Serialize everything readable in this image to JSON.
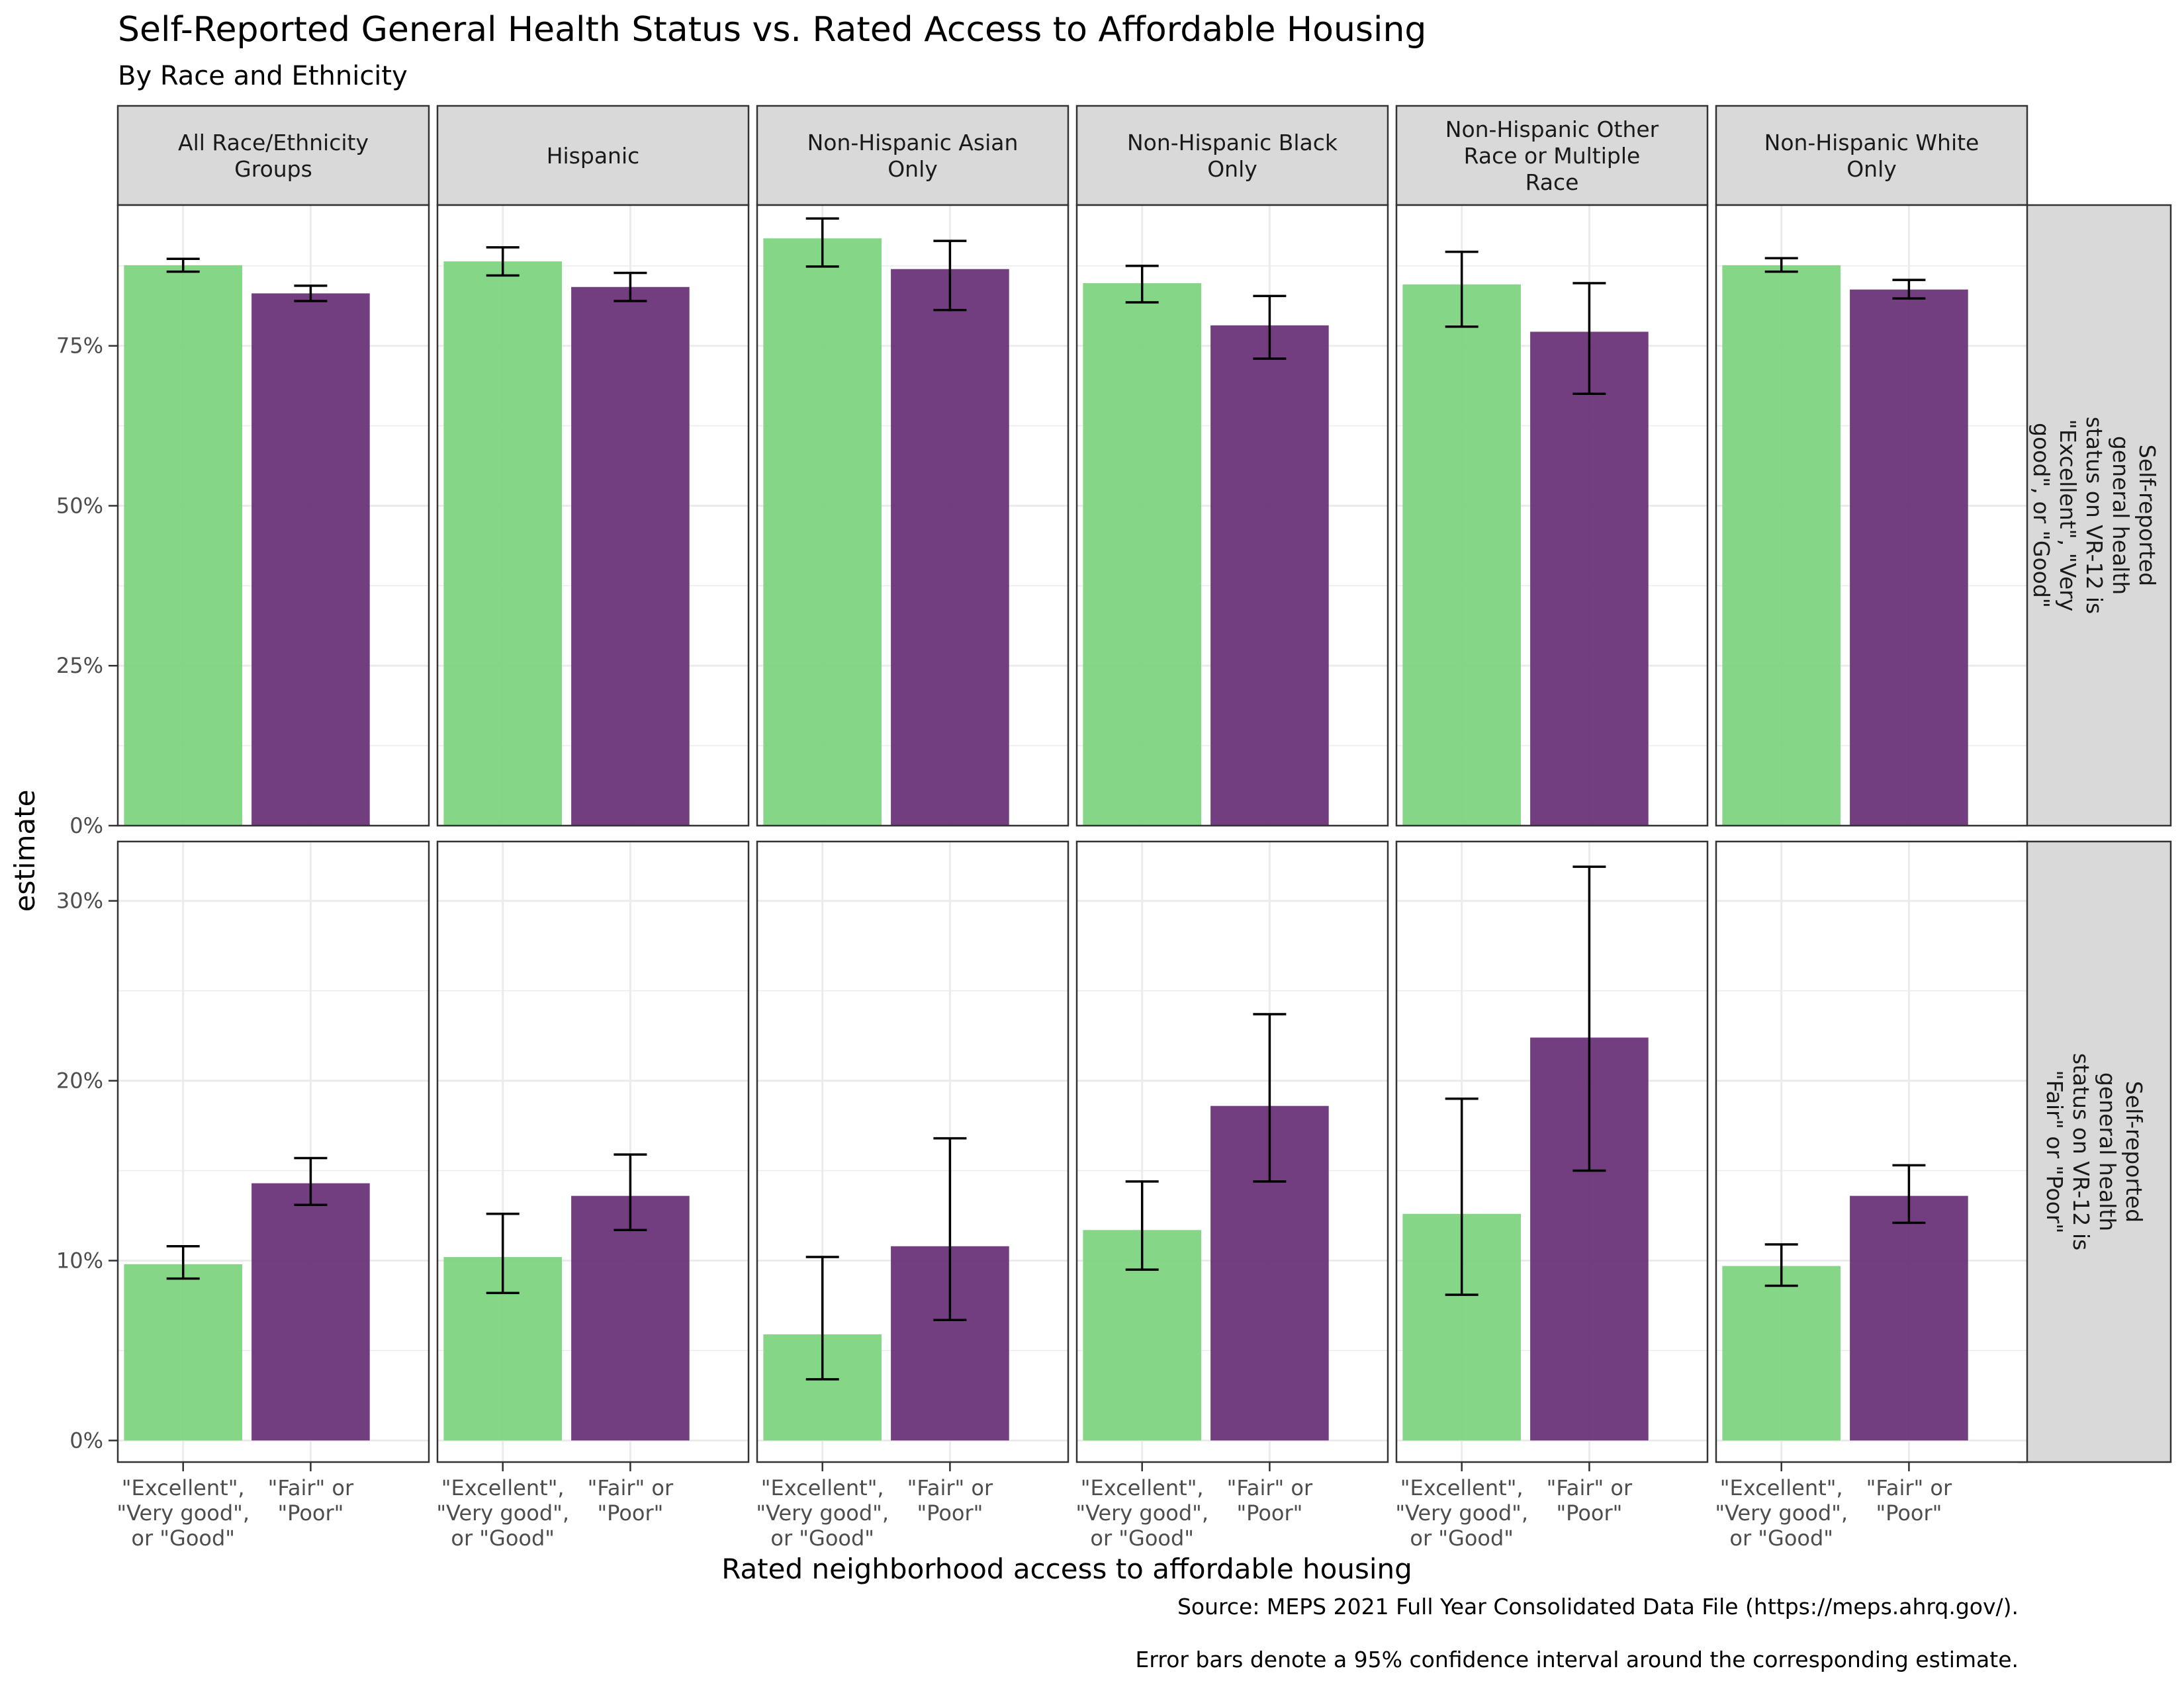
{
  "title": "Self-Reported General Health Status vs. Rated Access to Affordable Housing",
  "subtitle": "By Race and Ethnicity",
  "captions": [
    "Source: MEPS 2021 Full Year Consolidated Data File (https://meps.ahrq.gov/).",
    "Error bars denote a 95% confidence interval around the corresponding estimate."
  ],
  "colors": {
    "good": "#7ED47F",
    "poor": "#6A3479",
    "strip_fill": "#D9D9D9",
    "grid": "#EBEBEB",
    "panel_border": "#333333"
  },
  "chart_data": {
    "type": "bar",
    "xlabel": "Rated neighborhood access to affordable housing",
    "ylabel": "estimate",
    "grid": true,
    "legend": "none",
    "categories": [
      [
        "\"Excellent\",",
        "\"Very good\",",
        "or \"Good\""
      ],
      [
        "\"Fair\" or",
        "\"Poor\""
      ]
    ],
    "columns": [
      [
        "All Race/Ethnicity",
        "Groups"
      ],
      [
        "Hispanic"
      ],
      [
        "Non-Hispanic Asian",
        "Only"
      ],
      [
        "Non-Hispanic Black",
        "Only"
      ],
      [
        "Non-Hispanic Other",
        "Race or Multiple",
        "Race"
      ],
      [
        "Non-Hispanic White",
        "Only"
      ]
    ],
    "rows": [
      {
        "label": [
          "Self-reported",
          "general health",
          "status on VR-12 is",
          "\"Excellent\", \"Very",
          "good\", or \"Good\""
        ],
        "ylim": [
          0,
          0.97
        ],
        "yticks": [
          0,
          0.25,
          0.5,
          0.75
        ],
        "ytick_labels": [
          "0%",
          "25%",
          "50%",
          "75%"
        ],
        "panels": [
          {
            "values": [
              0.876,
              0.832
            ],
            "lower": [
              0.866,
              0.82
            ],
            "upper": [
              0.886,
              0.844
            ]
          },
          {
            "values": [
              0.882,
              0.842
            ],
            "lower": [
              0.86,
              0.82
            ],
            "upper": [
              0.904,
              0.864
            ]
          },
          {
            "values": [
              0.918,
              0.87
            ],
            "lower": [
              0.874,
              0.806
            ],
            "upper": [
              0.949,
              0.914
            ]
          },
          {
            "values": [
              0.848,
              0.782
            ],
            "lower": [
              0.818,
              0.73
            ],
            "upper": [
              0.875,
              0.828
            ]
          },
          {
            "values": [
              0.846,
              0.772
            ],
            "lower": [
              0.78,
              0.675
            ],
            "upper": [
              0.897,
              0.848
            ]
          },
          {
            "values": [
              0.876,
              0.838
            ],
            "lower": [
              0.866,
              0.824
            ],
            "upper": [
              0.887,
              0.853
            ]
          }
        ]
      },
      {
        "label": [
          "Self-reported",
          "general health",
          "status on VR-12 is",
          "\"Fair\" or \"Poor\""
        ],
        "ylim": [
          -0.012,
          0.333
        ],
        "yticks": [
          0,
          0.1,
          0.2,
          0.3
        ],
        "ytick_labels": [
          "0%",
          "10%",
          "20%",
          "30%"
        ],
        "panels": [
          {
            "values": [
              0.098,
              0.143
            ],
            "lower": [
              0.09,
              0.131
            ],
            "upper": [
              0.108,
              0.157
            ]
          },
          {
            "values": [
              0.102,
              0.136
            ],
            "lower": [
              0.082,
              0.117
            ],
            "upper": [
              0.126,
              0.159
            ]
          },
          {
            "values": [
              0.059,
              0.108
            ],
            "lower": [
              0.034,
              0.067
            ],
            "upper": [
              0.102,
              0.168
            ]
          },
          {
            "values": [
              0.117,
              0.186
            ],
            "lower": [
              0.095,
              0.144
            ],
            "upper": [
              0.144,
              0.237
            ]
          },
          {
            "values": [
              0.126,
              0.224
            ],
            "lower": [
              0.081,
              0.15
            ],
            "upper": [
              0.19,
              0.319
            ]
          },
          {
            "values": [
              0.097,
              0.136
            ],
            "lower": [
              0.086,
              0.121
            ],
            "upper": [
              0.109,
              0.153
            ]
          }
        ]
      }
    ]
  }
}
